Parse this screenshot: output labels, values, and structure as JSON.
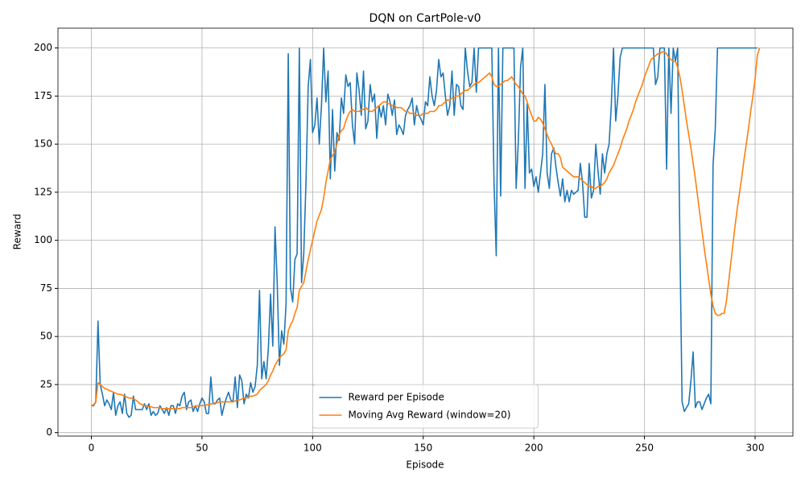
{
  "chart_data": {
    "type": "line",
    "title": "DQN on CartPole-v0",
    "x_label": "Episode",
    "y_label": "Reward",
    "x": [
      0,
      1,
      2,
      3,
      4,
      5,
      6,
      7,
      8,
      9,
      10,
      11,
      12,
      13,
      14,
      15,
      16,
      17,
      18,
      19,
      20,
      21,
      22,
      23,
      24,
      25,
      26,
      27,
      28,
      29,
      30,
      31,
      32,
      33,
      34,
      35,
      36,
      37,
      38,
      39,
      40,
      41,
      42,
      43,
      44,
      45,
      46,
      47,
      48,
      49,
      50,
      51,
      52,
      53,
      54,
      55,
      56,
      57,
      58,
      59,
      60,
      61,
      62,
      63,
      64,
      65,
      66,
      67,
      68,
      69,
      70,
      71,
      72,
      73,
      74,
      75,
      76,
      77,
      78,
      79,
      80,
      81,
      82,
      83,
      84,
      85,
      86,
      87,
      88,
      89,
      90,
      91,
      92,
      93,
      94,
      95,
      96,
      97,
      98,
      99,
      100,
      101,
      102,
      103,
      104,
      105,
      106,
      107,
      108,
      109,
      110,
      111,
      112,
      113,
      114,
      115,
      116,
      117,
      118,
      119,
      120,
      121,
      122,
      123,
      124,
      125,
      126,
      127,
      128,
      129,
      130,
      131,
      132,
      133,
      134,
      135,
      136,
      137,
      138,
      139,
      140,
      141,
      142,
      143,
      144,
      145,
      146,
      147,
      148,
      149,
      150,
      151,
      152,
      153,
      154,
      155,
      156,
      157,
      158,
      159,
      160,
      161,
      162,
      163,
      164,
      165,
      166,
      167,
      168,
      169,
      170,
      171,
      172,
      173,
      174,
      175,
      176,
      177,
      178,
      179,
      180,
      181,
      182,
      183,
      184,
      185,
      186,
      187,
      188,
      189,
      190,
      191,
      192,
      193,
      194,
      195,
      196,
      197,
      198,
      199,
      200,
      201,
      202,
      203,
      204,
      205,
      206,
      207,
      208,
      209,
      210,
      211,
      212,
      213,
      214,
      215,
      216,
      217,
      218,
      219,
      220,
      221,
      222,
      223,
      224,
      225,
      226,
      227,
      228,
      229,
      230,
      231,
      232,
      233,
      234,
      235,
      236,
      237,
      238,
      239,
      240,
      241,
      242,
      243,
      244,
      245,
      246,
      247,
      248,
      249,
      250,
      251,
      252,
      253,
      254,
      255,
      256,
      257,
      258,
      259,
      260,
      261,
      262,
      263,
      264,
      265,
      266,
      267,
      268,
      269,
      270,
      271,
      272,
      273,
      274,
      275,
      276,
      277,
      278,
      279,
      280,
      281,
      282,
      283,
      284,
      285,
      286,
      287,
      288,
      289,
      290,
      291,
      292,
      293,
      294,
      295,
      296,
      297,
      298,
      299,
      300,
      301,
      302
    ],
    "series": [
      {
        "name": "Reward per Episode",
        "color": "#1f77b4",
        "values": [
          14,
          14,
          16,
          58,
          25,
          20,
          14,
          17,
          15,
          12,
          21,
          9,
          14,
          16,
          10,
          20,
          10,
          8,
          9,
          19,
          12,
          12,
          12,
          12,
          15,
          12,
          15,
          9,
          11,
          9,
          10,
          14,
          12,
          10,
          13,
          9,
          14,
          14,
          10,
          15,
          14,
          19,
          21,
          12,
          16,
          17,
          11,
          14,
          11,
          15,
          18,
          16,
          10,
          10,
          29,
          15,
          15,
          17,
          18,
          9,
          14,
          18,
          21,
          17,
          16,
          29,
          13,
          30,
          27,
          15,
          20,
          18,
          26,
          21,
          24,
          35,
          74,
          28,
          37,
          28,
          44,
          72,
          45,
          107,
          78,
          35,
          53,
          46,
          67,
          197,
          75,
          68,
          90,
          93,
          200,
          78,
          93,
          130,
          180,
          194,
          156,
          160,
          174,
          150,
          170,
          200,
          172,
          188,
          132,
          168,
          136,
          156,
          152,
          174,
          166,
          186,
          180,
          182,
          160,
          150,
          187,
          178,
          165,
          188,
          158,
          162,
          181,
          172,
          176,
          153,
          170,
          164,
          170,
          160,
          176,
          172,
          165,
          173,
          155,
          160,
          158,
          155,
          165,
          168,
          170,
          174,
          160,
          170,
          165,
          163,
          160,
          172,
          170,
          185,
          175,
          170,
          178,
          194,
          185,
          187,
          175,
          165,
          170,
          188,
          165,
          181,
          180,
          170,
          168,
          200,
          188,
          180,
          182,
          200,
          177,
          200,
          200,
          200,
          200,
          200,
          200,
          200,
          130,
          92,
          200,
          123,
          200,
          200,
          200,
          200,
          200,
          200,
          127,
          152,
          190,
          200,
          127,
          171,
          135,
          137,
          128,
          133,
          125,
          135,
          145,
          181,
          135,
          127,
          145,
          148,
          138,
          130,
          123,
          132,
          120,
          126,
          120,
          126,
          124,
          125,
          126,
          140,
          130,
          112,
          112,
          140,
          122,
          126,
          150,
          136,
          124,
          145,
          135,
          145,
          150,
          170,
          200,
          162,
          175,
          195,
          200,
          200,
          200,
          200,
          200,
          200,
          200,
          200,
          200,
          200,
          200,
          200,
          200,
          200,
          200,
          181,
          185,
          200,
          200,
          200,
          137,
          200,
          166,
          200,
          193,
          200,
          100,
          16,
          11,
          13,
          15,
          27,
          42,
          13,
          16,
          16,
          12,
          15,
          18,
          20,
          15,
          139,
          158,
          200,
          200,
          200,
          200,
          200,
          200,
          200,
          200,
          200,
          200,
          200,
          200,
          200,
          200,
          200,
          200,
          200,
          200,
          200,
          null
        ]
      },
      {
        "name": "Moving Avg Reward (window=20)",
        "color": "#ff7f0e",
        "values": [
          14,
          14.5,
          16,
          26,
          25,
          24,
          23,
          22.5,
          22,
          21.5,
          21,
          20.5,
          20,
          20,
          19.5,
          19,
          18.5,
          18,
          18,
          17.5,
          17,
          16,
          15,
          14.5,
          14,
          14,
          13.5,
          13.5,
          13,
          13,
          13,
          13,
          12.5,
          12.5,
          12.5,
          12.5,
          12.5,
          12.5,
          12.5,
          12.5,
          12.5,
          13,
          13,
          13,
          13,
          13,
          13.5,
          13.5,
          14,
          14,
          14,
          14,
          14.5,
          14.5,
          15,
          15,
          15.5,
          15.5,
          16,
          16,
          16,
          16,
          16,
          16,
          16,
          16.5,
          17,
          17,
          17.5,
          18,
          18,
          18.5,
          19,
          19,
          19.5,
          20,
          22,
          23,
          24,
          25,
          27,
          30,
          32,
          35,
          37,
          39,
          40,
          41,
          43,
          53,
          56,
          58,
          62,
          65,
          74,
          76,
          78,
          84,
          90,
          95,
          100,
          105,
          110,
          113,
          116,
          122,
          130,
          136,
          142,
          144,
          146,
          150,
          155,
          157,
          158,
          162,
          165,
          167,
          168,
          167,
          167,
          167,
          168,
          168,
          169,
          168,
          167,
          167,
          168,
          169,
          170,
          171,
          172,
          172,
          171,
          171,
          170,
          170,
          169,
          169,
          169,
          168,
          167,
          167,
          166,
          166,
          166,
          165,
          165,
          165,
          166,
          166,
          166,
          167,
          167,
          167,
          168,
          170,
          170,
          171,
          172,
          173,
          173,
          174,
          174,
          175,
          175,
          176,
          177,
          178,
          178,
          179,
          180,
          181,
          182,
          182,
          183,
          184,
          185,
          186,
          187,
          185,
          181,
          180,
          180,
          181,
          182,
          183,
          183,
          184,
          185,
          183,
          181,
          180,
          178,
          176,
          175,
          172,
          168,
          165,
          162,
          162,
          164,
          163,
          161,
          158,
          155,
          152,
          150,
          147,
          145,
          145,
          143,
          138,
          137,
          136,
          135,
          134,
          133,
          133,
          133,
          132,
          131,
          130,
          129,
          128,
          128,
          127,
          127,
          128,
          128,
          129,
          130,
          132,
          135,
          137,
          139,
          142,
          145,
          148,
          152,
          155,
          158,
          162,
          165,
          168,
          172,
          175,
          178,
          181,
          185,
          188,
          191,
          194,
          195,
          196,
          197,
          197,
          198,
          198,
          197,
          195,
          194,
          193,
          193,
          190,
          185,
          178,
          170,
          162,
          155,
          148,
          140,
          132,
          123,
          114,
          105,
          96,
          88,
          80,
          72,
          66,
          62,
          61,
          61,
          62,
          62,
          68,
          78,
          88,
          98,
          108,
          117,
          125,
          133,
          142,
          150,
          158,
          167,
          175,
          184,
          196,
          200
        ]
      }
    ],
    "xlim": [
      -15.1,
      317.1
    ],
    "ylim": [
      -1.8,
      210.3
    ],
    "xticks": [
      0,
      50,
      100,
      150,
      200,
      250,
      300
    ],
    "yticks": [
      0,
      25,
      50,
      75,
      100,
      125,
      150,
      175,
      200
    ],
    "grid": true,
    "legend": "lower center"
  }
}
